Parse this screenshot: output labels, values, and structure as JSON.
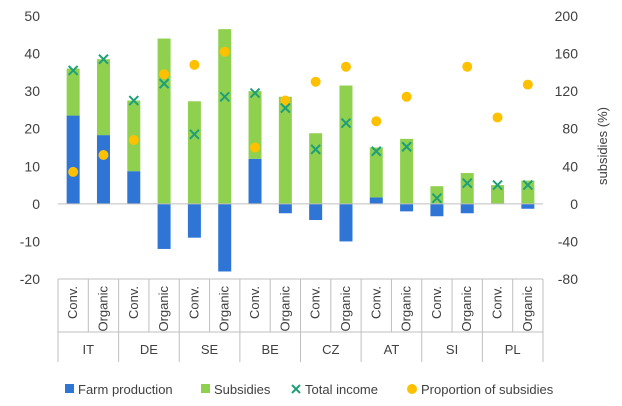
{
  "chart_data": {
    "type": "bar",
    "groups": [
      "IT",
      "DE",
      "SE",
      "BE",
      "CZ",
      "AT",
      "SI",
      "PL"
    ],
    "categories": [
      "Conv.",
      "Organic",
      "Conv.",
      "Organic",
      "Conv.",
      "Organic",
      "Conv.",
      "Organic",
      "Conv.",
      "Organic",
      "Conv.",
      "Organic",
      "Conv.",
      "Organic",
      "Conv.",
      "Organic"
    ],
    "series": [
      {
        "name": "Farm production",
        "kind": "stacked-bar",
        "axis": "left",
        "color": "#2E75D6",
        "values": [
          23.5,
          18.3,
          8.7,
          -12.0,
          -9.0,
          -18.0,
          12.0,
          -2.5,
          -4.3,
          -10.0,
          1.7,
          -2.0,
          -3.3,
          -2.5,
          0.0,
          -1.3
        ]
      },
      {
        "name": "Subsidies",
        "kind": "stacked-bar",
        "axis": "left",
        "color": "#8FD14F",
        "values": [
          12.5,
          20.2,
          18.8,
          44.0,
          27.3,
          46.5,
          18.0,
          28.5,
          18.8,
          31.5,
          13.3,
          17.3,
          4.7,
          8.2,
          5.0,
          6.2
        ]
      },
      {
        "name": "Total income",
        "kind": "marker-x",
        "axis": "left",
        "color": "#1F9E7A",
        "values": [
          35.5,
          38.5,
          27.5,
          32.0,
          18.5,
          28.5,
          29.5,
          25.5,
          14.5,
          21.5,
          14.0,
          15.2,
          1.5,
          5.5,
          5.0,
          5.0
        ]
      },
      {
        "name": "Proportion of subsidies",
        "kind": "marker-dot",
        "axis": "right",
        "color": "#FFC000",
        "values": [
          34,
          52,
          68,
          138,
          148,
          162,
          60,
          110,
          130,
          146,
          88,
          114,
          null,
          146,
          92,
          127
        ]
      }
    ],
    "left_axis": {
      "min": -20,
      "max": 50,
      "ticks": [
        "50",
        "40",
        "30",
        "20",
        "10",
        "0",
        "-10",
        "-20"
      ]
    },
    "right_axis": {
      "min": -80,
      "max": 200,
      "label": "subsidies (%)",
      "ticks": [
        "200",
        "160",
        "120",
        "80",
        "40",
        "0",
        "-40",
        "-80"
      ]
    },
    "grid": false,
    "legend_position": "bottom",
    "legend": [
      "Farm production",
      "Subsidies",
      "Total income",
      "Proportion of subsidies"
    ]
  }
}
